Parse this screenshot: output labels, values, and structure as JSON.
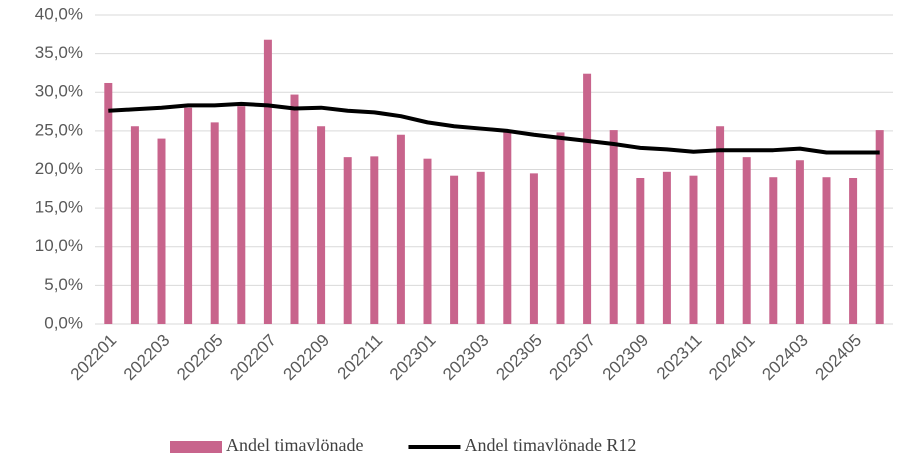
{
  "chart_data": {
    "type": "bar",
    "categories": [
      "202201",
      null,
      "202203",
      null,
      "202205",
      null,
      "202207",
      null,
      "202209",
      null,
      "202211",
      null,
      "202301",
      null,
      "202303",
      null,
      "202305",
      null,
      "202307",
      null,
      "202309",
      null,
      "202311",
      null,
      "202401",
      null,
      "202403",
      null,
      "202405",
      null
    ],
    "series": [
      {
        "name": "Andel timavlönade",
        "type": "bar",
        "color": "#c8648c",
        "values": [
          31.2,
          25.6,
          24.0,
          28.0,
          26.1,
          28.2,
          36.8,
          29.7,
          25.6,
          21.6,
          21.7,
          24.5,
          21.4,
          19.2,
          19.7,
          24.8,
          19.5,
          24.8,
          32.4,
          25.1,
          18.9,
          19.7,
          19.2,
          25.6,
          21.6,
          19.0,
          21.2,
          19.0,
          18.9,
          25.1
        ]
      },
      {
        "name": "Andel timavlönade R12",
        "type": "line",
        "color": "#000000",
        "values": [
          27.6,
          27.8,
          28.0,
          28.3,
          28.3,
          28.5,
          28.3,
          27.9,
          28.0,
          27.6,
          27.4,
          26.9,
          26.1,
          25.6,
          25.3,
          25.0,
          24.5,
          24.1,
          23.7,
          23.3,
          22.8,
          22.6,
          22.3,
          22.5,
          22.5,
          22.5,
          22.7,
          22.2,
          22.2,
          22.2
        ]
      }
    ],
    "ylim": [
      0,
      40
    ],
    "yticks": [
      {
        "value": 0,
        "label": "0,0%"
      },
      {
        "value": 5,
        "label": "5,0%"
      },
      {
        "value": 10,
        "label": "10,0%"
      },
      {
        "value": 15,
        "label": "15,0%"
      },
      {
        "value": 20,
        "label": "20,0%"
      },
      {
        "value": 25,
        "label": "25,0%"
      },
      {
        "value": 30,
        "label": "30,0%"
      },
      {
        "value": 35,
        "label": "35,0%"
      },
      {
        "value": 40,
        "label": "40,0%"
      }
    ],
    "grid": true,
    "legend": "bottom"
  }
}
